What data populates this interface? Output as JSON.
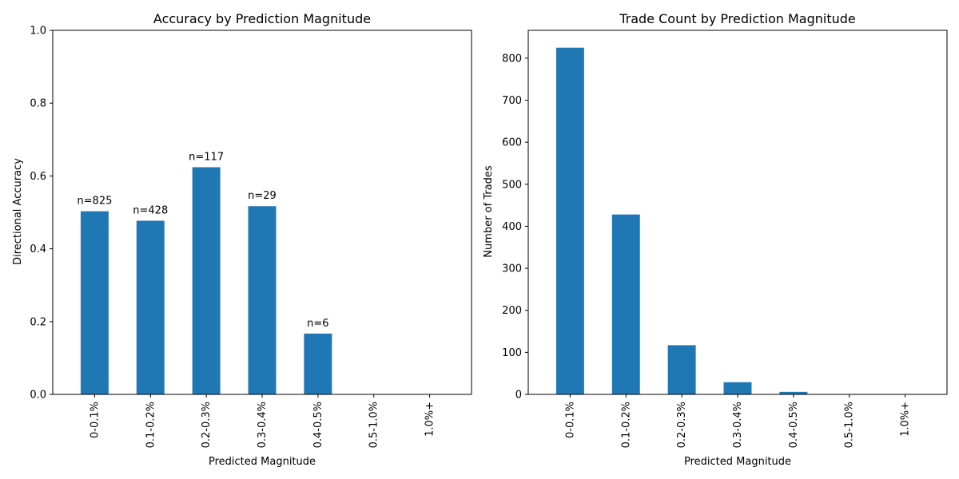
{
  "colors": {
    "bar": "#1f77b4",
    "axis": "#000000",
    "background": "#ffffff"
  },
  "chart_data": [
    {
      "type": "bar",
      "title": "Accuracy by Prediction Magnitude",
      "xlabel": "Predicted Magnitude",
      "ylabel": "Directional Accuracy",
      "categories": [
        "0-0.1%",
        "0.1-0.2%",
        "0.2-0.3%",
        "0.3-0.4%",
        "0.4-0.5%",
        "0.5-1.0%",
        "1.0%+"
      ],
      "values": [
        0.503,
        0.477,
        0.624,
        0.517,
        0.167,
        0,
        0
      ],
      "data_labels": [
        "n=825",
        "n=428",
        "n=117",
        "n=29",
        "n=6",
        "",
        ""
      ],
      "ylim": [
        0,
        1.0
      ],
      "yticks": [
        0.0,
        0.2,
        0.4,
        0.6,
        0.8,
        1.0
      ],
      "ytick_labels": [
        "0.0",
        "0.2",
        "0.4",
        "0.6",
        "0.8",
        "1.0"
      ],
      "grid": false
    },
    {
      "type": "bar",
      "title": "Trade Count by Prediction Magnitude",
      "xlabel": "Predicted Magnitude",
      "ylabel": "Number of Trades",
      "categories": [
        "0-0.1%",
        "0.1-0.2%",
        "0.2-0.3%",
        "0.3-0.4%",
        "0.4-0.5%",
        "0.5-1.0%",
        "1.0%+"
      ],
      "values": [
        825,
        428,
        117,
        29,
        6,
        0,
        0
      ],
      "data_labels": [],
      "ylim": [
        0,
        866.25
      ],
      "yticks": [
        0,
        100,
        200,
        300,
        400,
        500,
        600,
        700,
        800
      ],
      "ytick_labels": [
        "0",
        "100",
        "200",
        "300",
        "400",
        "500",
        "600",
        "700",
        "800"
      ],
      "grid": false
    }
  ]
}
